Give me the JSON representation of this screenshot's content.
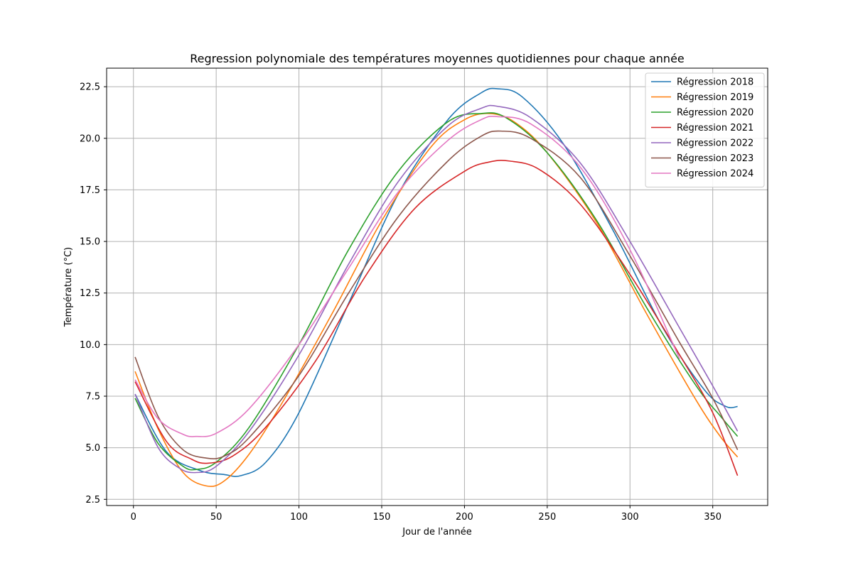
{
  "chart_data": {
    "type": "line",
    "title": "Regression polynomiale des températures moyennes quotidiennes pour chaque année",
    "xlabel": "Jour de l'année",
    "ylabel": "Température (°C)",
    "xlim": [
      -16.2,
      383.2
    ],
    "ylim": [
      2.2,
      23.4
    ],
    "xticks": [
      0,
      50,
      100,
      150,
      200,
      250,
      300,
      350
    ],
    "yticks": [
      2.5,
      5.0,
      7.5,
      10.0,
      12.5,
      15.0,
      17.5,
      20.0,
      22.5
    ],
    "grid": true,
    "legend_position": "top-right",
    "series": [
      {
        "name": "Régression 2018",
        "color": "#1f77b4",
        "points": [
          [
            1,
            7.6
          ],
          [
            20,
            4.8
          ],
          [
            40,
            3.9
          ],
          [
            55,
            3.7
          ],
          [
            65,
            3.65
          ],
          [
            80,
            4.3
          ],
          [
            100,
            6.7
          ],
          [
            130,
            12.0
          ],
          [
            160,
            17.3
          ],
          [
            190,
            20.9
          ],
          [
            210,
            22.2
          ],
          [
            220,
            22.4
          ],
          [
            235,
            22.0
          ],
          [
            260,
            19.7
          ],
          [
            290,
            15.5
          ],
          [
            320,
            10.8
          ],
          [
            345,
            7.8
          ],
          [
            358,
            7.0
          ],
          [
            365,
            7.0
          ]
        ]
      },
      {
        "name": "Régression 2019",
        "color": "#ff7f0e",
        "points": [
          [
            1,
            8.7
          ],
          [
            15,
            5.9
          ],
          [
            30,
            3.8
          ],
          [
            44,
            3.15
          ],
          [
            55,
            3.4
          ],
          [
            70,
            4.7
          ],
          [
            90,
            7.2
          ],
          [
            120,
            11.5
          ],
          [
            150,
            16.0
          ],
          [
            180,
            19.6
          ],
          [
            200,
            20.9
          ],
          [
            215,
            21.2
          ],
          [
            230,
            20.8
          ],
          [
            250,
            19.3
          ],
          [
            280,
            15.9
          ],
          [
            310,
            11.5
          ],
          [
            340,
            7.3
          ],
          [
            355,
            5.5
          ],
          [
            365,
            4.55
          ]
        ]
      },
      {
        "name": "Régression 2020",
        "color": "#2ca02c",
        "points": [
          [
            1,
            7.4
          ],
          [
            15,
            5.2
          ],
          [
            30,
            4.1
          ],
          [
            38,
            3.95
          ],
          [
            50,
            4.3
          ],
          [
            70,
            6.0
          ],
          [
            100,
            10.0
          ],
          [
            130,
            14.6
          ],
          [
            160,
            18.4
          ],
          [
            190,
            20.8
          ],
          [
            210,
            21.2
          ],
          [
            225,
            21.0
          ],
          [
            250,
            19.3
          ],
          [
            280,
            16.0
          ],
          [
            310,
            11.8
          ],
          [
            340,
            8.0
          ],
          [
            355,
            6.5
          ],
          [
            365,
            5.55
          ]
        ]
      },
      {
        "name": "Régression 2021",
        "color": "#d62728",
        "points": [
          [
            1,
            8.2
          ],
          [
            20,
            5.3
          ],
          [
            35,
            4.45
          ],
          [
            45,
            4.25
          ],
          [
            60,
            4.6
          ],
          [
            80,
            6.0
          ],
          [
            110,
            9.2
          ],
          [
            140,
            13.3
          ],
          [
            170,
            16.6
          ],
          [
            200,
            18.4
          ],
          [
            215,
            18.85
          ],
          [
            227,
            18.9
          ],
          [
            245,
            18.5
          ],
          [
            270,
            16.8
          ],
          [
            300,
            13.4
          ],
          [
            330,
            9.5
          ],
          [
            350,
            6.7
          ],
          [
            365,
            3.65
          ]
        ]
      },
      {
        "name": "Régression 2022",
        "color": "#9467bd",
        "points": [
          [
            1,
            7.6
          ],
          [
            15,
            5.0
          ],
          [
            28,
            4.0
          ],
          [
            38,
            3.8
          ],
          [
            50,
            4.1
          ],
          [
            70,
            5.8
          ],
          [
            100,
            9.5
          ],
          [
            130,
            13.9
          ],
          [
            160,
            17.9
          ],
          [
            190,
            20.6
          ],
          [
            210,
            21.45
          ],
          [
            220,
            21.55
          ],
          [
            240,
            21.0
          ],
          [
            270,
            18.8
          ],
          [
            300,
            15.0
          ],
          [
            330,
            10.8
          ],
          [
            350,
            8.0
          ],
          [
            365,
            5.8
          ]
        ]
      },
      {
        "name": "Régression 2023",
        "color": "#8c564b",
        "points": [
          [
            1,
            9.4
          ],
          [
            15,
            6.5
          ],
          [
            30,
            4.9
          ],
          [
            44,
            4.5
          ],
          [
            55,
            4.6
          ],
          [
            70,
            5.5
          ],
          [
            100,
            8.5
          ],
          [
            130,
            12.5
          ],
          [
            160,
            16.2
          ],
          [
            190,
            18.9
          ],
          [
            210,
            20.1
          ],
          [
            222,
            20.35
          ],
          [
            240,
            20.0
          ],
          [
            270,
            18.1
          ],
          [
            300,
            14.3
          ],
          [
            330,
            10.1
          ],
          [
            350,
            7.4
          ],
          [
            365,
            4.9
          ]
        ]
      },
      {
        "name": "Régression 2024",
        "color": "#e377c2",
        "points": [
          [
            1,
            8.3
          ],
          [
            15,
            6.4
          ],
          [
            30,
            5.65
          ],
          [
            38,
            5.55
          ],
          [
            50,
            5.7
          ],
          [
            70,
            6.9
          ],
          [
            100,
            10.0
          ],
          [
            130,
            13.7
          ],
          [
            160,
            17.4
          ],
          [
            190,
            19.9
          ],
          [
            210,
            20.9
          ],
          [
            220,
            21.05
          ],
          [
            240,
            20.7
          ],
          [
            270,
            18.6
          ],
          [
            300,
            14.6
          ],
          [
            330,
            9.3
          ]
        ]
      }
    ]
  }
}
